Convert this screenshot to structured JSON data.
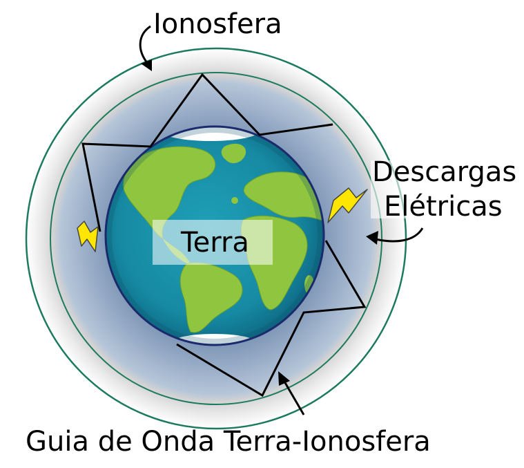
{
  "labels": {
    "ionosphere": "Ionosfera",
    "discharges_line1": "Descargas",
    "discharges_line2": "Elétricas",
    "earth": "Terra",
    "waveguide": "Guia de Onda Terra-Ionosfera"
  },
  "colors": {
    "ring_outline": "#1c7a5f",
    "ocean": "#1a8fa6",
    "land": "#8fc53f",
    "earth_outline": "#1a2a6c",
    "lightning": "#ffe600",
    "wave_path": "#000000"
  },
  "icons": [
    "lightning-bolt-icon",
    "arrow-icon"
  ]
}
